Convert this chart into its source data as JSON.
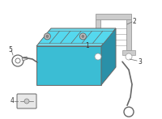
{
  "background_color": "#ffffff",
  "fig_width": 2.0,
  "fig_height": 1.47,
  "dpi": 100,
  "battery_color": "#3bbdd4",
  "battery_dark": "#2a90a8",
  "battery_top": "#6dd8ea",
  "bracket_color": "#cccccc",
  "bracket_edge": "#999999",
  "line_color": "#666666",
  "label_color": "#333333",
  "label_fontsize": 5.5
}
